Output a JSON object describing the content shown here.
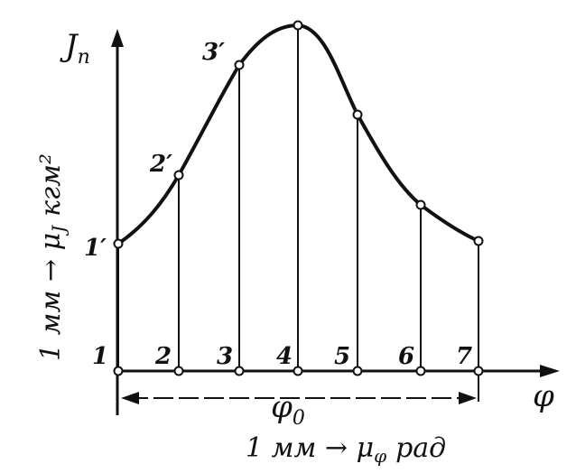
{
  "diagram": {
    "y_axis_label": "J",
    "y_axis_subscript": "п",
    "x_axis_label": "φ",
    "span_label": "φ",
    "span_subscript": "0",
    "y_scale_note": "1 мм → μ",
    "y_scale_sub": "J",
    "y_scale_unit": "кгм²",
    "x_scale_note": "1 мм → μ",
    "x_scale_sub": "φ",
    "x_scale_unit": "рад",
    "base_points": [
      {
        "label": "1"
      },
      {
        "label": "2"
      },
      {
        "label": "3"
      },
      {
        "label": "4"
      },
      {
        "label": "5"
      },
      {
        "label": "6"
      },
      {
        "label": "7"
      }
    ],
    "curve_points": [
      {
        "label": "1′"
      },
      {
        "label": "2′"
      },
      {
        "label": "3′"
      }
    ],
    "colors": {
      "ink": "#111111",
      "background": "#ffffff"
    }
  }
}
